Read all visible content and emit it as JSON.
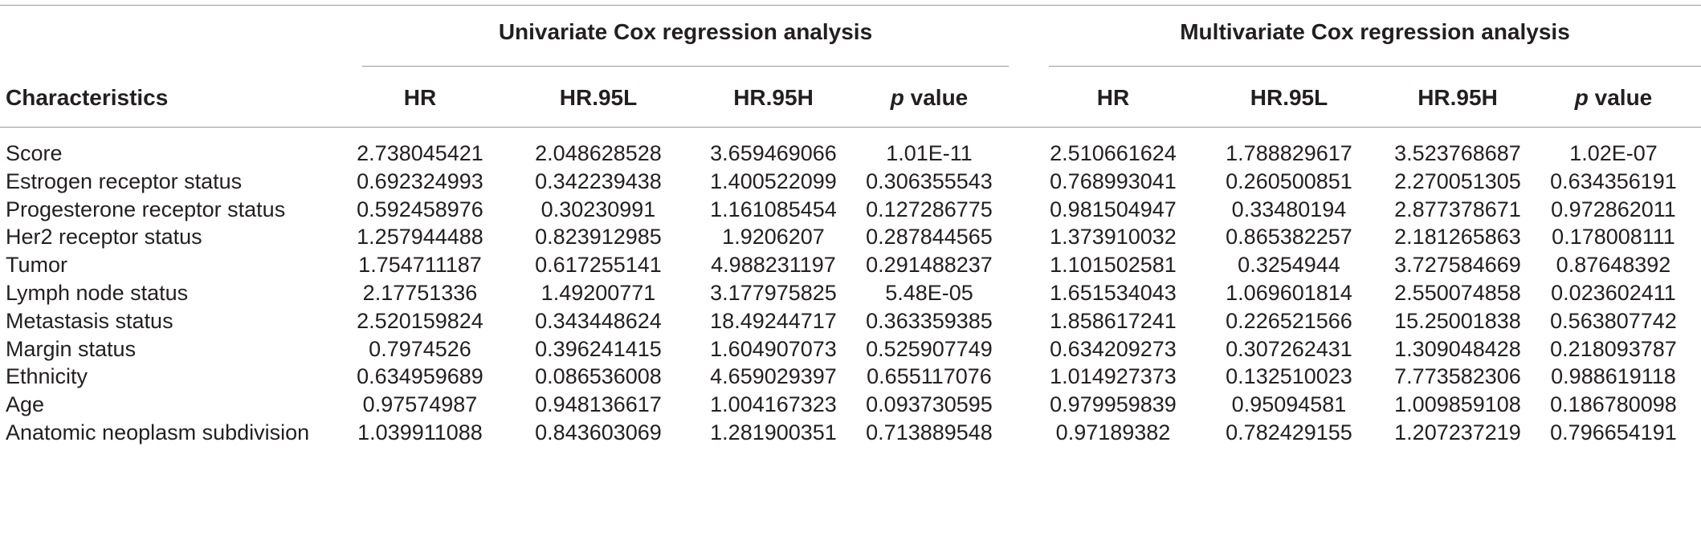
{
  "table": {
    "group_headers": {
      "univariate": "Univariate Cox regression analysis",
      "multivariate": "Multivariate Cox regression analysis"
    },
    "columns": {
      "characteristics": "Characteristics",
      "hr": "HR",
      "hr95l": "HR.95L",
      "hr95h": "HR.95H",
      "p_italic": "p",
      "p_suffix": " value"
    },
    "rows": [
      {
        "label": "Score",
        "uni": [
          "2.738045421",
          "2.048628528",
          "3.659469066",
          "1.01E-11"
        ],
        "multi": [
          "2.510661624",
          "1.788829617",
          "3.523768687",
          "1.02E-07"
        ]
      },
      {
        "label": "Estrogen receptor status",
        "uni": [
          "0.692324993",
          "0.342239438",
          "1.400522099",
          "0.306355543"
        ],
        "multi": [
          "0.768993041",
          "0.260500851",
          "2.270051305",
          "0.634356191"
        ]
      },
      {
        "label": "Progesterone receptor status",
        "uni": [
          "0.592458976",
          "0.30230991",
          "1.161085454",
          "0.127286775"
        ],
        "multi": [
          "0.981504947",
          "0.33480194",
          "2.877378671",
          "0.972862011"
        ]
      },
      {
        "label": "Her2 receptor status",
        "uni": [
          "1.257944488",
          "0.823912985",
          "1.9206207",
          "0.287844565"
        ],
        "multi": [
          "1.373910032",
          "0.865382257",
          "2.181265863",
          "0.178008111"
        ]
      },
      {
        "label": "Tumor",
        "uni": [
          "1.754711187",
          "0.617255141",
          "4.988231197",
          "0.291488237"
        ],
        "multi": [
          "1.101502581",
          "0.3254944",
          "3.727584669",
          "0.87648392"
        ]
      },
      {
        "label": "Lymph node status",
        "uni": [
          "2.17751336",
          "1.49200771",
          "3.177975825",
          "5.48E-05"
        ],
        "multi": [
          "1.651534043",
          "1.069601814",
          "2.550074858",
          "0.023602411"
        ]
      },
      {
        "label": "Metastasis status",
        "uni": [
          "2.520159824",
          "0.343448624",
          "18.49244717",
          "0.363359385"
        ],
        "multi": [
          "1.858617241",
          "0.226521566",
          "15.25001838",
          "0.563807742"
        ]
      },
      {
        "label": "Margin status",
        "uni": [
          "0.7974526",
          "0.396241415",
          "1.604907073",
          "0.525907749"
        ],
        "multi": [
          "0.634209273",
          "0.307262431",
          "1.309048428",
          "0.218093787"
        ]
      },
      {
        "label": "Ethnicity",
        "uni": [
          "0.634959689",
          "0.086536008",
          "4.659029397",
          "0.655117076"
        ],
        "multi": [
          "1.014927373",
          "0.132510023",
          "7.773582306",
          "0.988619118"
        ]
      },
      {
        "label": "Age",
        "uni": [
          "0.97574987",
          "0.948136617",
          "1.004167323",
          "0.093730595"
        ],
        "multi": [
          "0.979959839",
          "0.95094581",
          "1.009859108",
          "0.186780098"
        ]
      },
      {
        "label": "Anatomic neoplasm subdivision",
        "uni": [
          "1.039911088",
          "0.843603069",
          "1.281900351",
          "0.713889548"
        ],
        "multi": [
          "0.97189382",
          "0.782429155",
          "1.207237219",
          "0.796654191"
        ]
      }
    ]
  }
}
